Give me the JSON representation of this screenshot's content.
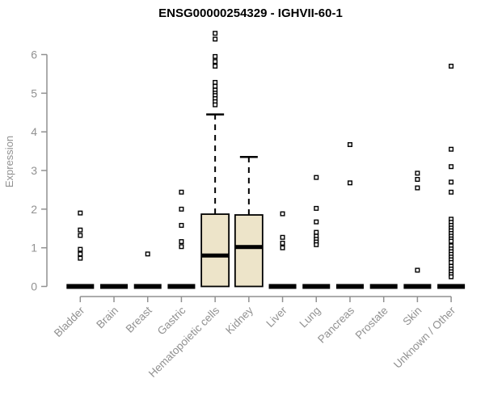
{
  "title": "ENSG00000254329 - IGHVII-60-1",
  "colors": {
    "box_fill": "#EDE4C9",
    "box_stroke": "#000000",
    "median": "#000000",
    "outlier_stroke": "#000000",
    "axis": "#919191",
    "title": "#000000",
    "background": "#ffffff"
  },
  "chart_data": {
    "type": "boxplot",
    "title": "ENSG00000254329 - IGHVII-60-1",
    "xlabel": "",
    "ylabel": "Expression",
    "ylim": [
      0,
      6.6
    ],
    "yticks": [
      0,
      1,
      2,
      3,
      4,
      5,
      6
    ],
    "grid": false,
    "legend": "none",
    "categories": [
      "Bladder",
      "Brain",
      "Breast",
      "Gastric",
      "Hematopoietic cells",
      "Kidney",
      "Liver",
      "Lung",
      "Pancreas",
      "Prostate",
      "Skin",
      "Unknown / Other"
    ],
    "boxes": [
      {
        "category": "Bladder",
        "q1": 0,
        "median": 0,
        "q3": 0,
        "whisker_low": 0,
        "whisker_high": 0,
        "outliers": [
          1.9,
          1.46,
          1.32,
          0.96,
          0.84,
          0.73
        ]
      },
      {
        "category": "Brain",
        "q1": 0,
        "median": 0,
        "q3": 0,
        "whisker_low": 0,
        "whisker_high": 0,
        "outliers": []
      },
      {
        "category": "Breast",
        "q1": 0,
        "median": 0,
        "q3": 0,
        "whisker_low": 0,
        "whisker_high": 0,
        "outliers": [
          0.84
        ]
      },
      {
        "category": "Gastric",
        "q1": 0,
        "median": 0,
        "q3": 0,
        "whisker_low": 0,
        "whisker_high": 0,
        "outliers": [
          2.44,
          2.0,
          1.58,
          1.16,
          1.03
        ]
      },
      {
        "category": "Hematopoietic cells",
        "q1": 0,
        "median": 0.8,
        "q3": 1.87,
        "whisker_low": 0,
        "whisker_high": 4.45,
        "outliers": [
          6.55,
          6.4,
          5.95,
          5.82,
          5.7,
          5.28,
          5.18,
          5.08,
          5.0,
          4.94,
          4.86,
          4.78,
          4.7
        ]
      },
      {
        "category": "Kidney",
        "q1": 0,
        "median": 1.02,
        "q3": 1.85,
        "whisker_low": 0,
        "whisker_high": 3.35,
        "outliers": []
      },
      {
        "category": "Liver",
        "q1": 0,
        "median": 0,
        "q3": 0,
        "whisker_low": 0,
        "whisker_high": 0,
        "outliers": [
          1.88,
          1.27,
          1.12,
          1.0
        ]
      },
      {
        "category": "Lung",
        "q1": 0,
        "median": 0,
        "q3": 0,
        "whisker_low": 0,
        "whisker_high": 0,
        "outliers": [
          2.82,
          2.02,
          1.67,
          1.4,
          1.3,
          1.22,
          1.15,
          1.08
        ]
      },
      {
        "category": "Pancreas",
        "q1": 0,
        "median": 0,
        "q3": 0,
        "whisker_low": 0,
        "whisker_high": 0,
        "outliers": [
          3.67,
          2.68
        ]
      },
      {
        "category": "Prostate",
        "q1": 0,
        "median": 0,
        "q3": 0,
        "whisker_low": 0,
        "whisker_high": 0,
        "outliers": []
      },
      {
        "category": "Skin",
        "q1": 0,
        "median": 0,
        "q3": 0,
        "whisker_low": 0,
        "whisker_high": 0,
        "outliers": [
          2.93,
          2.77,
          2.55,
          0.42
        ]
      },
      {
        "category": "Unknown / Other",
        "q1": 0,
        "median": 0,
        "q3": 0,
        "whisker_low": 0,
        "whisker_high": 0,
        "outliers": [
          5.7,
          3.55,
          3.1,
          2.7,
          2.44,
          1.74,
          1.66,
          1.58,
          1.51,
          1.44,
          1.37,
          1.3,
          1.23,
          1.17,
          1.05,
          0.97,
          0.9,
          0.83,
          0.76,
          0.69,
          0.62,
          0.52,
          0.45,
          0.38,
          0.31,
          0.25
        ]
      }
    ]
  }
}
